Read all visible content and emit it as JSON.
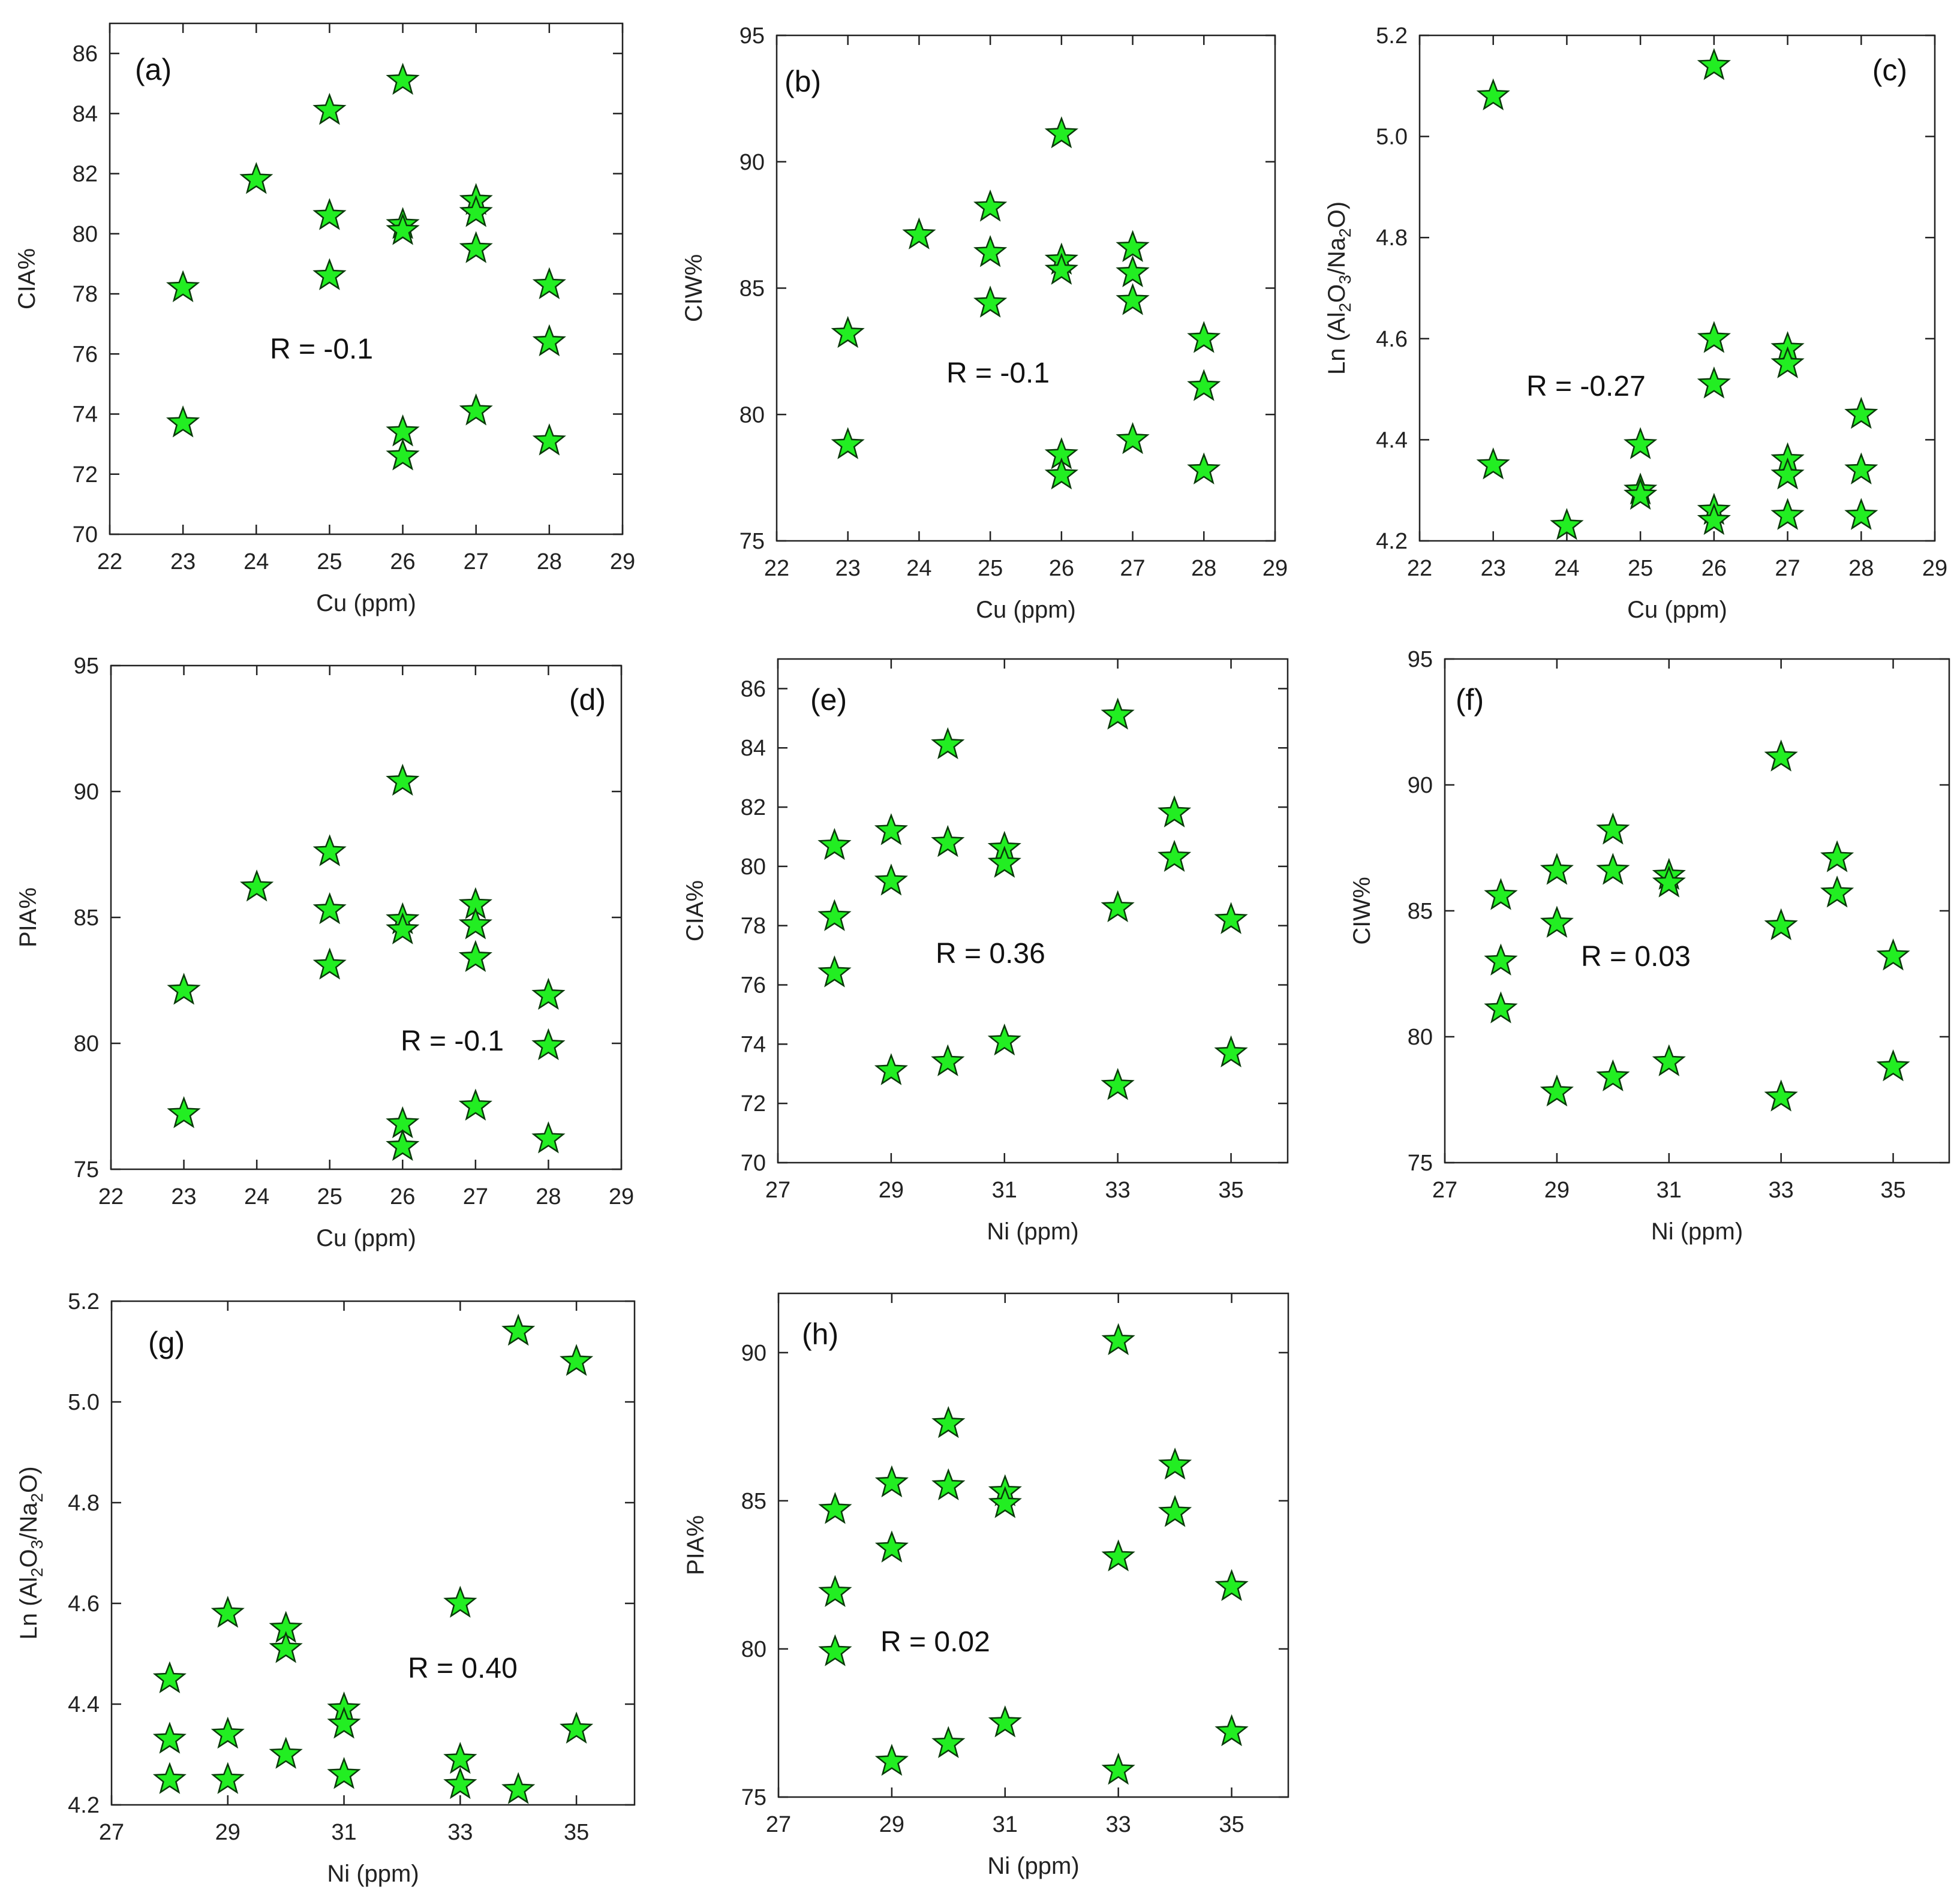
{
  "colors": {
    "marker_fill": "#22ee22",
    "marker_stroke": "#0a3a0a",
    "axis": "#222222"
  },
  "chart_data": [
    {
      "type": "scatter",
      "label": "(a)",
      "annotation": "R = -0.1",
      "xlabel": "Cu (ppm)",
      "ylabel": "CIA%",
      "xlim": [
        22,
        29
      ],
      "xticks": [
        22,
        23,
        24,
        25,
        26,
        27,
        28,
        29
      ],
      "ylim": [
        70,
        87
      ],
      "yticks": [
        70,
        72,
        74,
        76,
        78,
        80,
        82,
        84,
        86
      ],
      "points": [
        [
          23,
          78.2
        ],
        [
          23,
          73.7
        ],
        [
          24,
          81.8
        ],
        [
          25,
          84.1
        ],
        [
          25,
          80.6
        ],
        [
          25,
          78.6
        ],
        [
          26,
          85.1
        ],
        [
          26,
          80.3
        ],
        [
          26,
          80.1
        ],
        [
          26,
          73.4
        ],
        [
          26,
          72.6
        ],
        [
          27,
          81.1
        ],
        [
          27,
          80.7
        ],
        [
          27,
          79.5
        ],
        [
          27,
          74.1
        ],
        [
          28,
          78.3
        ],
        [
          28,
          76.4
        ],
        [
          28,
          73.1
        ]
      ]
    },
    {
      "type": "scatter",
      "label": "(b)",
      "annotation": "R = -0.1",
      "xlabel": "Cu (ppm)",
      "ylabel": "CIW%",
      "xlim": [
        22,
        29
      ],
      "xticks": [
        22,
        23,
        24,
        25,
        26,
        27,
        28,
        29
      ],
      "ylim": [
        75,
        95
      ],
      "yticks": [
        75,
        80,
        85,
        90,
        95
      ],
      "points": [
        [
          23,
          83.2
        ],
        [
          23,
          78.8
        ],
        [
          24,
          87.1
        ],
        [
          25,
          88.2
        ],
        [
          25,
          86.4
        ],
        [
          25,
          84.4
        ],
        [
          26,
          91.1
        ],
        [
          26,
          86.1
        ],
        [
          26,
          85.7
        ],
        [
          26,
          78.4
        ],
        [
          26,
          77.6
        ],
        [
          27,
          86.6
        ],
        [
          27,
          85.6
        ],
        [
          27,
          84.5
        ],
        [
          27,
          79.0
        ],
        [
          28,
          83.0
        ],
        [
          28,
          81.1
        ],
        [
          28,
          77.8
        ]
      ]
    },
    {
      "type": "scatter",
      "label": "(c)",
      "annotation": "R = -0.27",
      "xlabel": "Cu (ppm)",
      "ylabel": "Ln (Al2O3/Na2O)",
      "ylabel_parts": {
        "pre": "Ln (Al",
        "sub1": "2",
        "mid1": "O",
        "sub2": "3",
        "mid2": "/Na",
        "sub3": "2",
        "post": "O)"
      },
      "xlim": [
        22,
        29
      ],
      "xticks": [
        22,
        23,
        24,
        25,
        26,
        27,
        28,
        29
      ],
      "ylim": [
        4.2,
        5.2
      ],
      "yticks": [
        4.2,
        4.4,
        4.6,
        4.8,
        5.0,
        5.2
      ],
      "ytick_labels": [
        "4.2",
        "4.4",
        "4.6",
        "4.8",
        "5.0",
        "5.2"
      ],
      "points": [
        [
          23,
          5.08
        ],
        [
          23,
          4.35
        ],
        [
          24,
          4.23
        ],
        [
          25,
          4.39
        ],
        [
          25,
          4.3
        ],
        [
          25,
          4.29
        ],
        [
          26,
          5.14
        ],
        [
          26,
          4.6
        ],
        [
          26,
          4.51
        ],
        [
          26,
          4.26
        ],
        [
          26,
          4.24
        ],
        [
          27,
          4.58
        ],
        [
          27,
          4.55
        ],
        [
          27,
          4.36
        ],
        [
          27,
          4.33
        ],
        [
          27,
          4.25
        ],
        [
          28,
          4.45
        ],
        [
          28,
          4.34
        ],
        [
          28,
          4.25
        ]
      ]
    },
    {
      "type": "scatter",
      "label": "(d)",
      "annotation": "R = -0.1",
      "xlabel": "Cu (ppm)",
      "ylabel": "PIA%",
      "xlim": [
        22,
        29
      ],
      "xticks": [
        22,
        23,
        24,
        25,
        26,
        27,
        28,
        29
      ],
      "ylim": [
        75,
        95
      ],
      "yticks": [
        75,
        80,
        85,
        90,
        95
      ],
      "points": [
        [
          23,
          82.1
        ],
        [
          23,
          77.2
        ],
        [
          24,
          86.2
        ],
        [
          25,
          87.6
        ],
        [
          25,
          85.3
        ],
        [
          25,
          83.1
        ],
        [
          26,
          90.4
        ],
        [
          26,
          84.9
        ],
        [
          26,
          84.5
        ],
        [
          26,
          76.8
        ],
        [
          26,
          75.9
        ],
        [
          27,
          85.5
        ],
        [
          27,
          84.7
        ],
        [
          27,
          83.4
        ],
        [
          27,
          77.5
        ],
        [
          28,
          81.9
        ],
        [
          28,
          79.9
        ],
        [
          28,
          76.2
        ]
      ]
    },
    {
      "type": "scatter",
      "label": "(e)",
      "annotation": "R = 0.36",
      "xlabel": "Ni (ppm)",
      "ylabel": "CIA%",
      "xlim": [
        27,
        36
      ],
      "xticks": [
        27,
        29,
        31,
        33,
        35
      ],
      "ylim": [
        70,
        87
      ],
      "yticks": [
        70,
        72,
        74,
        76,
        78,
        80,
        82,
        84,
        86
      ],
      "points": [
        [
          28,
          80.7
        ],
        [
          28,
          78.3
        ],
        [
          28,
          76.4
        ],
        [
          29,
          81.2
        ],
        [
          29,
          79.5
        ],
        [
          29,
          73.1
        ],
        [
          30,
          84.1
        ],
        [
          30,
          80.8
        ],
        [
          30,
          73.4
        ],
        [
          31,
          80.6
        ],
        [
          31,
          80.1
        ],
        [
          31,
          74.1
        ],
        [
          33,
          85.1
        ],
        [
          33,
          78.6
        ],
        [
          33,
          72.6
        ],
        [
          34,
          81.8
        ],
        [
          34,
          80.3
        ],
        [
          35,
          78.2
        ],
        [
          35,
          73.7
        ]
      ]
    },
    {
      "type": "scatter",
      "label": "(f)",
      "annotation": "R = 0.03",
      "xlabel": "Ni (ppm)",
      "ylabel": "CIW%",
      "xlim": [
        27,
        36
      ],
      "xticks": [
        27,
        29,
        31,
        33,
        35
      ],
      "ylim": [
        75,
        95
      ],
      "yticks": [
        75,
        80,
        85,
        90,
        95
      ],
      "points": [
        [
          28,
          85.6
        ],
        [
          28,
          83.0
        ],
        [
          28,
          81.1
        ],
        [
          29,
          86.6
        ],
        [
          29,
          84.5
        ],
        [
          29,
          77.8
        ],
        [
          30,
          88.2
        ],
        [
          30,
          86.6
        ],
        [
          30,
          78.4
        ],
        [
          31,
          86.4
        ],
        [
          31,
          86.1
        ],
        [
          31,
          79.0
        ],
        [
          33,
          91.1
        ],
        [
          33,
          84.4
        ],
        [
          33,
          77.6
        ],
        [
          34,
          87.1
        ],
        [
          34,
          85.7
        ],
        [
          35,
          83.2
        ],
        [
          35,
          78.8
        ]
      ]
    },
    {
      "type": "scatter",
      "label": "(g)",
      "annotation": "R = 0.40",
      "xlabel": "Ni (ppm)",
      "ylabel": "Ln (Al2O3/Na2O)",
      "ylabel_parts": {
        "pre": "Ln (Al",
        "sub1": "2",
        "mid1": "O",
        "sub2": "3",
        "mid2": "/Na",
        "sub3": "2",
        "post": "O)"
      },
      "xlim": [
        27,
        36
      ],
      "xticks": [
        27,
        29,
        31,
        33,
        35
      ],
      "ylim": [
        4.2,
        5.2
      ],
      "yticks": [
        4.2,
        4.4,
        4.6,
        4.8,
        5.0,
        5.2
      ],
      "ytick_labels": [
        "4.2",
        "4.4",
        "4.6",
        "4.8",
        "5.0",
        "5.2"
      ],
      "points": [
        [
          28,
          4.45
        ],
        [
          28,
          4.33
        ],
        [
          28,
          4.25
        ],
        [
          29,
          4.58
        ],
        [
          29,
          4.34
        ],
        [
          29,
          4.25
        ],
        [
          30,
          4.55
        ],
        [
          30,
          4.51
        ],
        [
          30,
          4.3
        ],
        [
          31,
          4.39
        ],
        [
          31,
          4.36
        ],
        [
          31,
          4.26
        ],
        [
          33,
          4.6
        ],
        [
          33,
          4.29
        ],
        [
          33,
          4.24
        ],
        [
          34,
          5.14
        ],
        [
          34,
          4.23
        ],
        [
          35,
          5.08
        ],
        [
          35,
          4.35
        ]
      ]
    },
    {
      "type": "scatter",
      "label": "(h)",
      "annotation": "R = 0.02",
      "xlabel": "Ni (ppm)",
      "ylabel": "PIA%",
      "xlim": [
        27,
        36
      ],
      "xticks": [
        27,
        29,
        31,
        33,
        35
      ],
      "ylim": [
        75,
        92
      ],
      "yticks": [
        75,
        80,
        85,
        90
      ],
      "points": [
        [
          28,
          84.7
        ],
        [
          28,
          81.9
        ],
        [
          28,
          79.9
        ],
        [
          29,
          85.6
        ],
        [
          29,
          83.4
        ],
        [
          29,
          76.2
        ],
        [
          30,
          87.6
        ],
        [
          30,
          85.5
        ],
        [
          30,
          76.8
        ],
        [
          31,
          85.3
        ],
        [
          31,
          84.9
        ],
        [
          31,
          77.5
        ],
        [
          33,
          90.4
        ],
        [
          33,
          83.1
        ],
        [
          33,
          75.9
        ],
        [
          34,
          86.2
        ],
        [
          34,
          84.6
        ],
        [
          35,
          82.1
        ],
        [
          35,
          77.2
        ]
      ]
    }
  ]
}
